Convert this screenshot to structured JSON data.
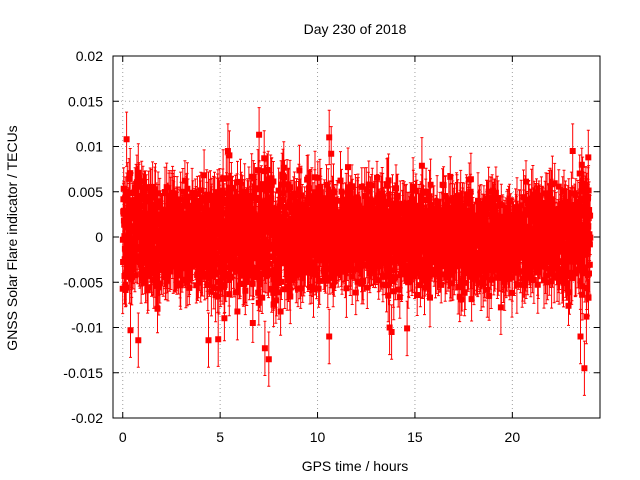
{
  "chart_data": {
    "type": "scatter",
    "title": "Day 230 of 2018",
    "xlabel": "GPS time / hours",
    "ylabel": "GNSS Solar Flare indicator / TECUs",
    "xlim": [
      -0.5,
      24.5
    ],
    "ylim": [
      -0.02,
      0.02
    ],
    "xticks": [
      0,
      5,
      10,
      15,
      20
    ],
    "xtick_labels": [
      "0",
      "5",
      "10",
      "15",
      "20"
    ],
    "yticks": [
      -0.02,
      -0.015,
      -0.01,
      -0.005,
      0,
      0.005,
      0.01,
      0.015,
      0.02
    ],
    "ytick_labels": [
      "-0.02",
      "-0.015",
      "-0.01",
      "-0.005",
      "0",
      "0.005",
      "0.01",
      "0.015",
      "0.02"
    ],
    "grid": true,
    "series": [
      {
        "name": "GNSS Solar Flare indicator",
        "color": "#ff0000",
        "marker": "square",
        "error_bars": true,
        "x_start": 0,
        "x_end": 24,
        "sample_count": 2880,
        "typical_range": [
          -0.006,
          0.006
        ],
        "typical_error": 0.0025,
        "notable_points": [
          {
            "x": 0.2,
            "y": 0.0108
          },
          {
            "x": 0.4,
            "y": -0.0103
          },
          {
            "x": 0.8,
            "y": -0.0114
          },
          {
            "x": 4.4,
            "y": -0.0114
          },
          {
            "x": 4.9,
            "y": -0.0113
          },
          {
            "x": 5.4,
            "y": 0.0095
          },
          {
            "x": 7.0,
            "y": 0.0113
          },
          {
            "x": 7.3,
            "y": -0.0123
          },
          {
            "x": 7.5,
            "y": -0.0135
          },
          {
            "x": 10.6,
            "y": 0.011
          },
          {
            "x": 10.6,
            "y": -0.011
          },
          {
            "x": 10.7,
            "y": 0.0092
          },
          {
            "x": 13.7,
            "y": -0.01
          },
          {
            "x": 13.8,
            "y": -0.0105
          },
          {
            "x": 14.6,
            "y": -0.0101
          },
          {
            "x": 23.1,
            "y": 0.0095
          },
          {
            "x": 23.5,
            "y": -0.011
          },
          {
            "x": 23.7,
            "y": -0.0145
          },
          {
            "x": 23.8,
            "y": -0.0088
          },
          {
            "x": 23.9,
            "y": 0.0088
          }
        ]
      }
    ]
  }
}
